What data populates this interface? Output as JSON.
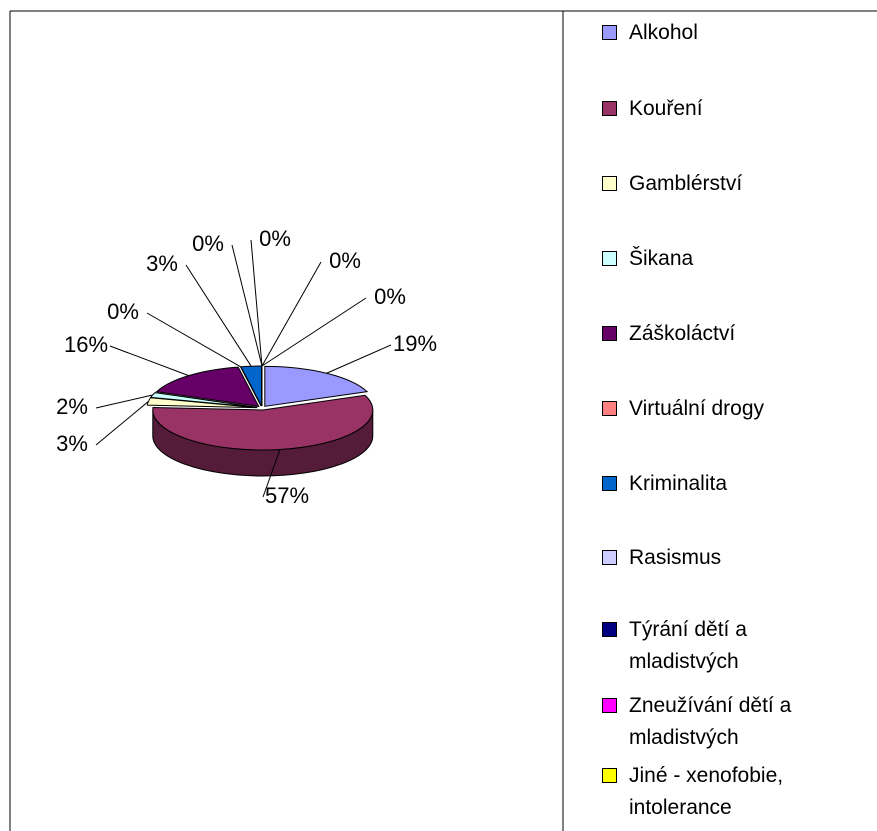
{
  "chart_data": {
    "type": "pie3d",
    "categories": [
      "Alkohol",
      "Kouření",
      "Gamblérství",
      "Šikana",
      "Záškoláctví",
      "Virtuální drogy",
      "Kriminalita",
      "Rasismus",
      "Týrání dětí a mladistvých",
      "Zneužívání dětí a mladistvých",
      "Jiné - xenofobie, intolerance"
    ],
    "values": [
      19,
      57,
      3,
      2,
      16,
      0,
      3,
      0,
      0,
      0,
      0
    ],
    "value_labels": [
      "19%",
      "57%",
      "3%",
      "2%",
      "16%",
      "0%",
      "3%",
      "0%",
      "0%",
      "0%",
      "0%"
    ],
    "colors": [
      "#9999ff",
      "#993366",
      "#ffffcc",
      "#ccffff",
      "#660066",
      "#ff8080",
      "#0066cc",
      "#ccccff",
      "#000080",
      "#ff00ff",
      "#ffff00"
    ],
    "legend": "right"
  }
}
